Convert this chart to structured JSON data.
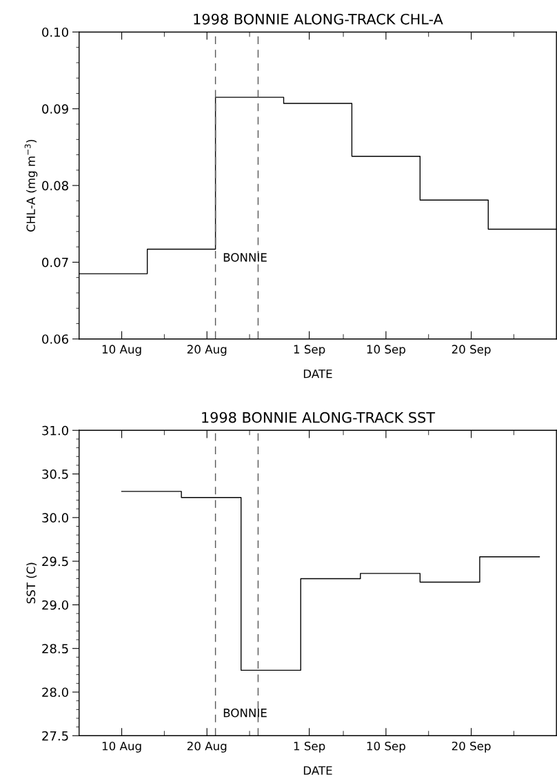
{
  "chart_data": [
    {
      "type": "step",
      "title": "1998 BONNIE ALONG-TRACK CHL-A",
      "xlabel": "DATE",
      "ylabel": "CHL-A (mg m$^{−3}$)",
      "x": [
        "1998-08-05",
        "1998-08-13",
        "1998-08-21",
        "1998-08-29",
        "1998-09-06",
        "1998-09-14",
        "1998-09-22",
        "1998-09-30"
      ],
      "series": [
        {
          "color": "#000000",
          "values": [
            0.0685,
            0.0717,
            0.0915,
            0.0907,
            0.0838,
            0.0781,
            0.0743,
            0.0743
          ]
        }
      ],
      "xlim": [
        "1998-08-05",
        "1998-09-30"
      ],
      "xticks": [
        {
          "value": "1998-08-10",
          "label": "10 Aug"
        },
        {
          "value": "1998-08-15",
          "label": null
        },
        {
          "value": "1998-08-20",
          "label": "20 Aug"
        },
        {
          "value": "1998-08-25",
          "label": null
        },
        {
          "value": "1998-09-01",
          "label": "1 Sep"
        },
        {
          "value": "1998-09-05",
          "label": null
        },
        {
          "value": "1998-09-10",
          "label": "10 Sep"
        },
        {
          "value": "1998-09-15",
          "label": null
        },
        {
          "value": "1998-09-20",
          "label": "20 Sep"
        },
        {
          "value": "1998-09-25",
          "label": null
        }
      ],
      "ylim": [
        0.06,
        0.1
      ],
      "yticks": [
        {
          "value": 0.06,
          "label": "0.06"
        },
        {
          "value": 0.062,
          "label": null
        },
        {
          "value": 0.064,
          "label": null
        },
        {
          "value": 0.066,
          "label": null
        },
        {
          "value": 0.068,
          "label": null
        },
        {
          "value": 0.07,
          "label": "0.07"
        },
        {
          "value": 0.072,
          "label": null
        },
        {
          "value": 0.074,
          "label": null
        },
        {
          "value": 0.076,
          "label": null
        },
        {
          "value": 0.078,
          "label": null
        },
        {
          "value": 0.08,
          "label": "0.08"
        },
        {
          "value": 0.082,
          "label": null
        },
        {
          "value": 0.084,
          "label": null
        },
        {
          "value": 0.086,
          "label": null
        },
        {
          "value": 0.088,
          "label": null
        },
        {
          "value": 0.09,
          "label": "0.09"
        },
        {
          "value": 0.092,
          "label": null
        },
        {
          "value": 0.094,
          "label": null
        },
        {
          "value": 0.096,
          "label": null
        },
        {
          "value": 0.098,
          "label": null
        },
        {
          "value": 0.1,
          "label": "0.10"
        }
      ],
      "ref_lines": [
        {
          "axis": "x",
          "value": "1998-08-21",
          "color": "#555555",
          "line_style": "dashed"
        },
        {
          "axis": "x",
          "value": "1998-08-26",
          "color": "#555555",
          "line_style": "dashed"
        }
      ],
      "annotations": [
        {
          "text": "BONNIE",
          "x": "1998-08-21",
          "y": 0.0705
        }
      ],
      "grid": false,
      "legend": false,
      "marker": "none",
      "line_style": "solid"
    },
    {
      "type": "step",
      "title": "1998 BONNIE ALONG-TRACK SST",
      "xlabel": "DATE",
      "ylabel": "SST (C)",
      "x": [
        "1998-08-10",
        "1998-08-17",
        "1998-08-24",
        "1998-08-31",
        "1998-09-07",
        "1998-09-14",
        "1998-09-21",
        "1998-09-28"
      ],
      "series": [
        {
          "color": "#000000",
          "values": [
            30.3,
            30.23,
            28.25,
            29.3,
            29.36,
            29.26,
            29.55,
            29.55
          ]
        }
      ],
      "xlim": [
        "1998-08-05",
        "1998-09-30"
      ],
      "xticks": [
        {
          "value": "1998-08-10",
          "label": "10 Aug"
        },
        {
          "value": "1998-08-15",
          "label": null
        },
        {
          "value": "1998-08-20",
          "label": "20 Aug"
        },
        {
          "value": "1998-08-25",
          "label": null
        },
        {
          "value": "1998-09-01",
          "label": "1 Sep"
        },
        {
          "value": "1998-09-05",
          "label": null
        },
        {
          "value": "1998-09-10",
          "label": "10 Sep"
        },
        {
          "value": "1998-09-15",
          "label": null
        },
        {
          "value": "1998-09-20",
          "label": "20 Sep"
        },
        {
          "value": "1998-09-25",
          "label": null
        }
      ],
      "ylim": [
        27.5,
        31.0
      ],
      "yticks": [
        {
          "value": 27.5,
          "label": "27.5"
        },
        {
          "value": 27.6,
          "label": null
        },
        {
          "value": 27.7,
          "label": null
        },
        {
          "value": 27.8,
          "label": null
        },
        {
          "value": 27.9,
          "label": null
        },
        {
          "value": 28.0,
          "label": "28.0"
        },
        {
          "value": 28.1,
          "label": null
        },
        {
          "value": 28.2,
          "label": null
        },
        {
          "value": 28.3,
          "label": null
        },
        {
          "value": 28.4,
          "label": null
        },
        {
          "value": 28.5,
          "label": "28.5"
        },
        {
          "value": 28.6,
          "label": null
        },
        {
          "value": 28.7,
          "label": null
        },
        {
          "value": 28.8,
          "label": null
        },
        {
          "value": 28.9,
          "label": null
        },
        {
          "value": 29.0,
          "label": "29.0"
        },
        {
          "value": 29.1,
          "label": null
        },
        {
          "value": 29.2,
          "label": null
        },
        {
          "value": 29.3,
          "label": null
        },
        {
          "value": 29.4,
          "label": null
        },
        {
          "value": 29.5,
          "label": "29.5"
        },
        {
          "value": 29.6,
          "label": null
        },
        {
          "value": 29.7,
          "label": null
        },
        {
          "value": 29.8,
          "label": null
        },
        {
          "value": 29.9,
          "label": null
        },
        {
          "value": 30.0,
          "label": "30.0"
        },
        {
          "value": 30.1,
          "label": null
        },
        {
          "value": 30.2,
          "label": null
        },
        {
          "value": 30.3,
          "label": null
        },
        {
          "value": 30.4,
          "label": null
        },
        {
          "value": 30.5,
          "label": "30.5"
        },
        {
          "value": 30.6,
          "label": null
        },
        {
          "value": 30.7,
          "label": null
        },
        {
          "value": 30.8,
          "label": null
        },
        {
          "value": 30.9,
          "label": null
        },
        {
          "value": 31.0,
          "label": "31.0"
        }
      ],
      "ref_lines": [
        {
          "axis": "x",
          "value": "1998-08-21",
          "color": "#555555",
          "line_style": "dashed"
        },
        {
          "axis": "x",
          "value": "1998-08-26",
          "color": "#555555",
          "line_style": "dashed"
        }
      ],
      "annotations": [
        {
          "text": "BONNIE",
          "x": "1998-08-21",
          "y": 27.75
        }
      ],
      "grid": false,
      "legend": false,
      "marker": "none",
      "line_style": "solid"
    }
  ]
}
